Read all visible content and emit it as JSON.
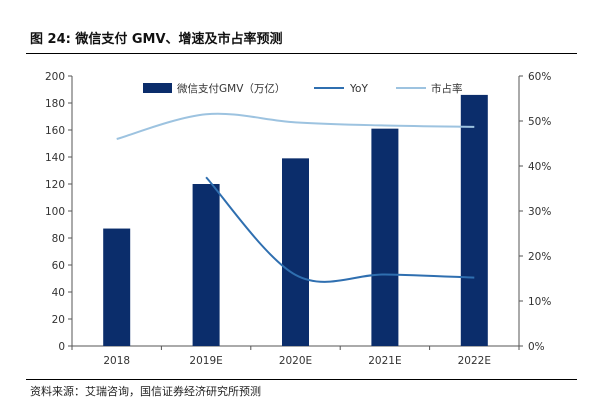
{
  "figure_title": "图 24:  微信支付 GMV、增速及市占率预测",
  "source": "资料来源：艾瑞咨询，国信证券经济研究所预测",
  "colors": {
    "bar": "#0b2d6b",
    "yoy": "#2f6fb0",
    "share": "#9dc3e0",
    "axis": "#555555"
  },
  "chart_data": {
    "type": "bar",
    "categories": [
      "2018",
      "2019E",
      "2020E",
      "2021E",
      "2022E"
    ],
    "series": [
      {
        "name": "微信支付GMV（万亿）",
        "type": "bar",
        "axis": "left",
        "values": [
          87,
          120,
          139,
          161,
          186
        ]
      },
      {
        "name": "YoY",
        "type": "line",
        "axis": "right",
        "values": [
          null,
          37.5,
          15.8,
          15.9,
          15.2
        ]
      },
      {
        "name": "市占率",
        "type": "line",
        "axis": "right",
        "values": [
          46,
          51.5,
          49.7,
          49,
          48.7
        ]
      }
    ],
    "y_left": {
      "min": 0,
      "max": 200,
      "ticks": [
        "0",
        "20",
        "40",
        "60",
        "80",
        "100",
        "120",
        "140",
        "160",
        "180",
        "200"
      ]
    },
    "y_right": {
      "min": 0,
      "max": 60,
      "ticks": [
        "0%",
        "10%",
        "20%",
        "30%",
        "40%",
        "50%",
        "60%"
      ]
    },
    "grid": false,
    "legend": "top-center"
  }
}
